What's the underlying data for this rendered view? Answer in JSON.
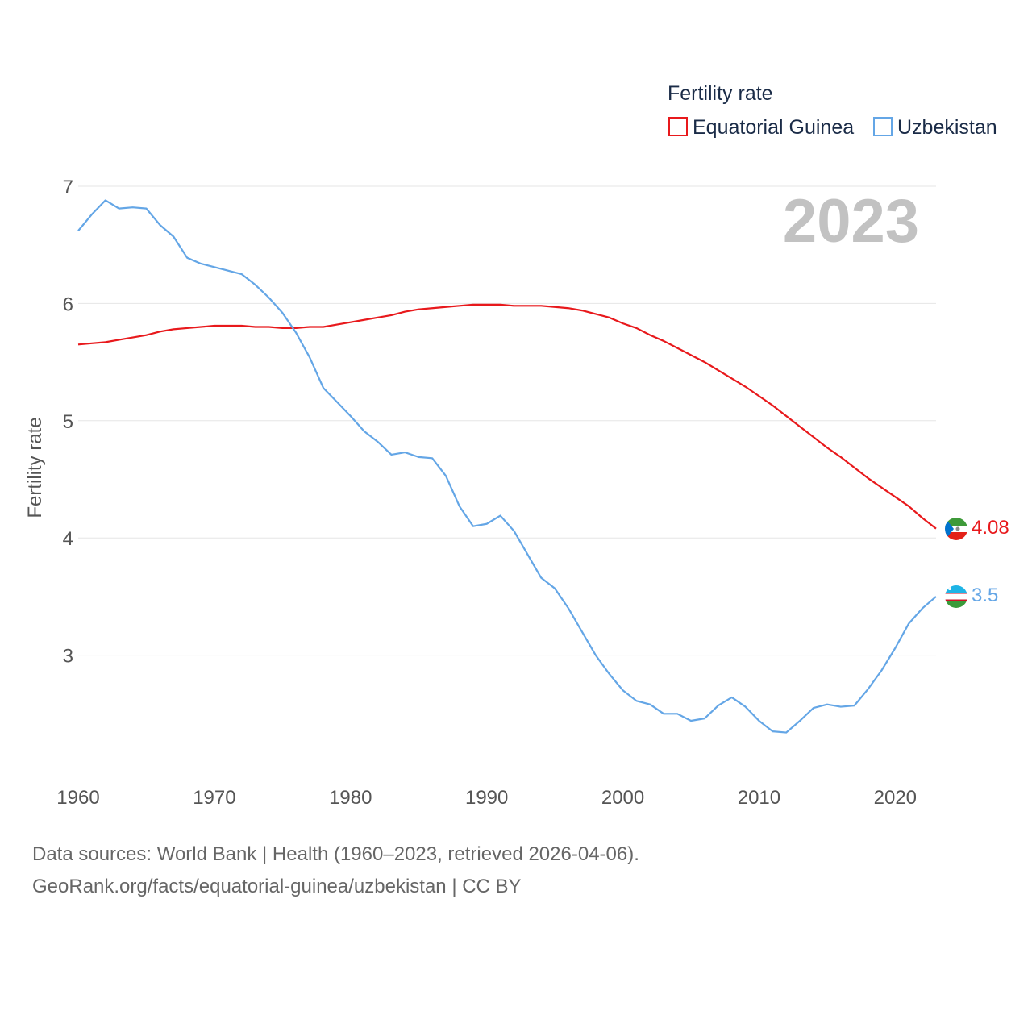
{
  "chart_data": {
    "type": "line",
    "title": "Fertility rate",
    "ylabel": "Fertility rate",
    "xlabel": "",
    "year_label": "2023",
    "xlim": [
      1960,
      2023
    ],
    "ylim": [
      2,
      7
    ],
    "x_ticks": [
      1960,
      1970,
      1980,
      1990,
      2000,
      2010,
      2020
    ],
    "y_ticks": [
      3,
      4,
      5,
      6,
      7
    ],
    "grid": true,
    "legend_position": "top-right",
    "x": [
      1960,
      1961,
      1962,
      1963,
      1964,
      1965,
      1966,
      1967,
      1968,
      1969,
      1970,
      1971,
      1972,
      1973,
      1974,
      1975,
      1976,
      1977,
      1978,
      1979,
      1980,
      1981,
      1982,
      1983,
      1984,
      1985,
      1986,
      1987,
      1988,
      1989,
      1990,
      1991,
      1992,
      1993,
      1994,
      1995,
      1996,
      1997,
      1998,
      1999,
      2000,
      2001,
      2002,
      2003,
      2004,
      2005,
      2006,
      2007,
      2008,
      2009,
      2010,
      2011,
      2012,
      2013,
      2014,
      2015,
      2016,
      2017,
      2018,
      2019,
      2020,
      2021,
      2022,
      2023
    ],
    "series": [
      {
        "name": "Equatorial Guinea",
        "color": "#e8191c",
        "flag": "equatorial-guinea-flag-icon",
        "end_label": "4.08",
        "values": [
          5.65,
          5.66,
          5.67,
          5.69,
          5.71,
          5.73,
          5.76,
          5.78,
          5.79,
          5.8,
          5.81,
          5.81,
          5.81,
          5.8,
          5.8,
          5.79,
          5.79,
          5.8,
          5.8,
          5.82,
          5.84,
          5.86,
          5.88,
          5.9,
          5.93,
          5.95,
          5.96,
          5.97,
          5.98,
          5.99,
          5.99,
          5.99,
          5.98,
          5.98,
          5.98,
          5.97,
          5.96,
          5.94,
          5.91,
          5.88,
          5.83,
          5.79,
          5.73,
          5.68,
          5.62,
          5.56,
          5.5,
          5.43,
          5.36,
          5.29,
          5.21,
          5.13,
          5.04,
          4.95,
          4.86,
          4.77,
          4.69,
          4.6,
          4.51,
          4.43,
          4.35,
          4.27,
          4.17,
          4.08
        ]
      },
      {
        "name": "Uzbekistan",
        "color": "#64a6e6",
        "flag": "uzbekistan-flag-icon",
        "end_label": "3.5",
        "values": [
          6.62,
          6.76,
          6.88,
          6.81,
          6.82,
          6.81,
          6.67,
          6.57,
          6.39,
          6.34,
          6.31,
          6.28,
          6.25,
          6.16,
          6.05,
          5.92,
          5.75,
          5.54,
          5.28,
          5.16,
          5.04,
          4.91,
          4.82,
          4.71,
          4.73,
          4.69,
          4.68,
          4.53,
          4.27,
          4.1,
          4.12,
          4.19,
          4.06,
          3.86,
          3.66,
          3.57,
          3.4,
          3.2,
          3.0,
          2.84,
          2.7,
          2.61,
          2.58,
          2.5,
          2.5,
          2.44,
          2.46,
          2.57,
          2.64,
          2.56,
          2.44,
          2.35,
          2.34,
          2.44,
          2.55,
          2.58,
          2.56,
          2.57,
          2.71,
          2.87,
          3.06,
          3.27,
          3.4,
          3.5
        ]
      }
    ]
  },
  "footer": {
    "source": "Data sources: World Bank | Health (1960–2023, retrieved 2026-04-06).",
    "credit": "GeoRank.org/facts/equatorial-guinea/uzbekistan | CC BY"
  }
}
